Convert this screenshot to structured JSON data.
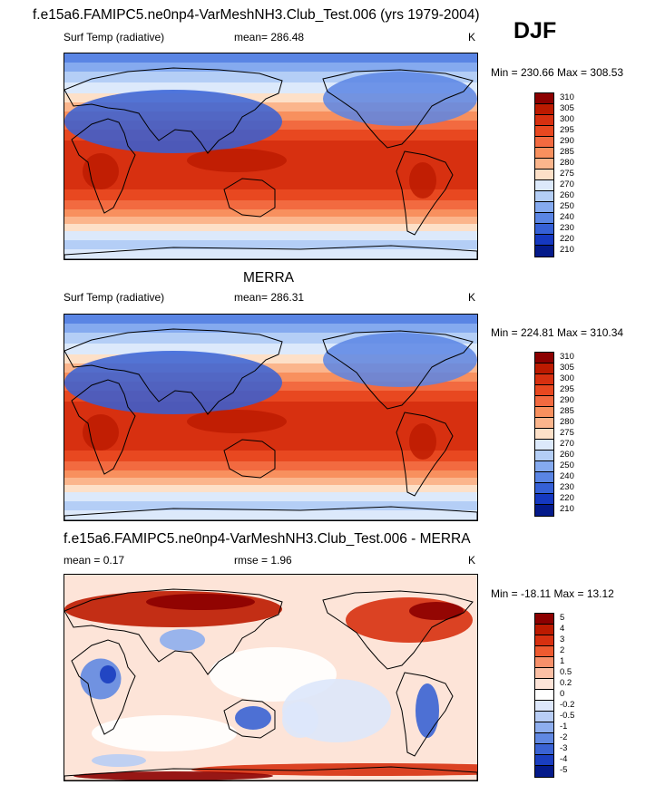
{
  "header": {
    "title": "f.e15a6.FAMIPC5.ne0np4-VarMeshNH3.Club_Test.006 (yrs 1979-2004)",
    "season": "DJF"
  },
  "panels": [
    {
      "id": "model",
      "title": "",
      "left_label": "Surf Temp (radiative)",
      "center_label": "mean= 286.48",
      "right_label": "K",
      "minmax": "Min = 230.66 Max = 308.53"
    },
    {
      "id": "obs",
      "title": "MERRA",
      "left_label": "Surf Temp (radiative)",
      "center_label": "mean= 286.31",
      "right_label": "K",
      "minmax": "Min = 224.81 Max = 310.34"
    },
    {
      "id": "diff",
      "title": "f.e15a6.FAMIPC5.ne0np4-VarMeshNH3.Club_Test.006 - MERRA",
      "left_label": "mean =   0.17",
      "center_label": "rmse =   1.96",
      "right_label": "K",
      "minmax": "Min = -18.11 Max =  13.12"
    }
  ],
  "chart_data": [
    {
      "type": "heatmap",
      "title": "Surf Temp (radiative)",
      "units": "K",
      "mean": 286.48,
      "min": 230.66,
      "max": 308.53,
      "colorbar_levels": [
        "310",
        "305",
        "300",
        "295",
        "290",
        "285",
        "280",
        "275",
        "270",
        "260",
        "250",
        "240",
        "230",
        "220",
        "210"
      ],
      "colorbar_colors": [
        "#8c0000",
        "#bc1a00",
        "#d73010",
        "#e84820",
        "#f26a40",
        "#f8905e",
        "#fbb58c",
        "#fde0c8",
        "#dce9fb",
        "#b4cef6",
        "#85aaef",
        "#5a85e4",
        "#3560d6",
        "#1538c0",
        "#041a8a"
      ]
    },
    {
      "type": "heatmap",
      "title": "MERRA",
      "units": "K",
      "mean": 286.31,
      "min": 224.81,
      "max": 310.34,
      "colorbar_levels": [
        "310",
        "305",
        "300",
        "295",
        "290",
        "285",
        "280",
        "275",
        "270",
        "260",
        "250",
        "240",
        "230",
        "220",
        "210"
      ],
      "colorbar_colors": [
        "#8c0000",
        "#bc1a00",
        "#d73010",
        "#e84820",
        "#f26a40",
        "#f8905e",
        "#fbb58c",
        "#fde0c8",
        "#dce9fb",
        "#b4cef6",
        "#85aaef",
        "#5a85e4",
        "#3560d6",
        "#1538c0",
        "#041a8a"
      ]
    },
    {
      "type": "heatmap",
      "title": "f.e15a6.FAMIPC5.ne0np4-VarMeshNH3.Club_Test.006 - MERRA",
      "units": "K",
      "mean": 0.17,
      "rmse": 1.96,
      "min": -18.11,
      "max": 13.12,
      "colorbar_levels": [
        "5",
        "4",
        "3",
        "2",
        "1",
        "0.5",
        "0.2",
        "0",
        "-0.2",
        "-0.5",
        "-1",
        "-2",
        "-3",
        "-4",
        "-5"
      ],
      "colorbar_colors": [
        "#8c0000",
        "#bc1a00",
        "#d73010",
        "#ee5a30",
        "#f7906a",
        "#fbbfa4",
        "#fde4d8",
        "#ffffff",
        "#dde7fb",
        "#b8cdf5",
        "#8eaeee",
        "#6088e2",
        "#3a63d4",
        "#1a3ec0",
        "#041a8a"
      ]
    }
  ]
}
